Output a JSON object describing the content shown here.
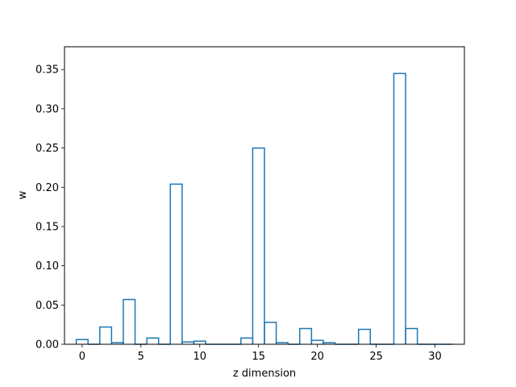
{
  "chart_data": {
    "type": "bar",
    "style": "step-histogram",
    "title": "",
    "xlabel": "z dimension",
    "ylabel": "w",
    "x": [
      0,
      1,
      2,
      3,
      4,
      5,
      6,
      7,
      8,
      9,
      10,
      11,
      12,
      13,
      14,
      15,
      16,
      17,
      18,
      19,
      20,
      21,
      22,
      23,
      24,
      25,
      26,
      27,
      28,
      29,
      30,
      31
    ],
    "values": [
      0.006,
      0.0,
      0.022,
      0.002,
      0.057,
      0.0,
      0.008,
      0.0,
      0.204,
      0.003,
      0.004,
      0.0,
      0.0,
      0.0,
      0.008,
      0.25,
      0.028,
      0.002,
      0.0,
      0.02,
      0.005,
      0.002,
      0.0,
      0.0,
      0.019,
      0.0,
      0.0,
      0.345,
      0.02,
      0.0,
      0.0,
      0.0
    ],
    "xlim": [
      -1.5,
      32.5
    ],
    "ylim": [
      0,
      0.379
    ],
    "xticks": [
      0,
      5,
      10,
      15,
      20,
      25,
      30
    ],
    "yticks": [
      0.0,
      0.05,
      0.1,
      0.15,
      0.2,
      0.25,
      0.3,
      0.35
    ],
    "ytick_labels": [
      "0.00",
      "0.05",
      "0.10",
      "0.15",
      "0.20",
      "0.25",
      "0.30",
      "0.35"
    ],
    "grid": false,
    "line_color": "#1f77b4"
  }
}
